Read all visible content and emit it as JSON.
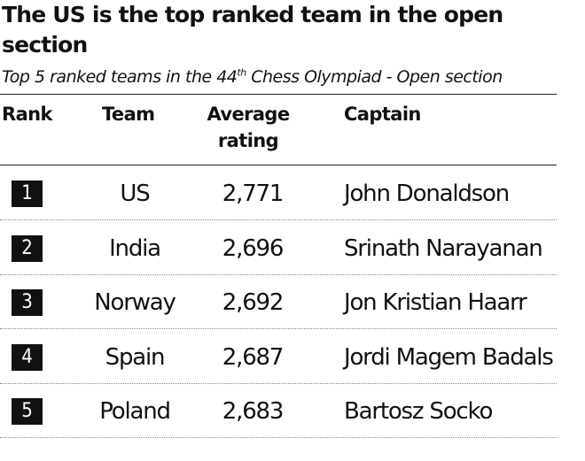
{
  "title": "The US is the top ranked team in the open section",
  "subtitle_pre": "Top 5 ranked teams in the 44",
  "subtitle_sup": "th",
  "subtitle_post": " Chess Olympiad - Open section",
  "headers": {
    "rank": "Rank",
    "team": "Team",
    "average_rating_line1": "Average",
    "average_rating_line2": "rating",
    "captain": "Captain"
  },
  "chart_data": {
    "type": "table",
    "title": "The US is the top ranked team in the open section",
    "subtitle": "Top 5 ranked teams in the 44th Chess Olympiad - Open section",
    "columns": [
      "Rank",
      "Team",
      "Average rating",
      "Captain"
    ],
    "rows": [
      {
        "rank": "1",
        "team": "US",
        "average_rating": "2,771",
        "captain": "John Donaldson"
      },
      {
        "rank": "2",
        "team": "India",
        "average_rating": "2,696",
        "captain": "Srinath Narayanan"
      },
      {
        "rank": "3",
        "team": "Norway",
        "average_rating": "2,692",
        "captain": "Jon Kristian Haarr"
      },
      {
        "rank": "4",
        "team": "Spain",
        "average_rating": "2,687",
        "captain": "Jordi Magem Badals"
      },
      {
        "rank": "5",
        "team": "Poland",
        "average_rating": "2,683",
        "captain": "Bartosz Socko"
      }
    ]
  }
}
